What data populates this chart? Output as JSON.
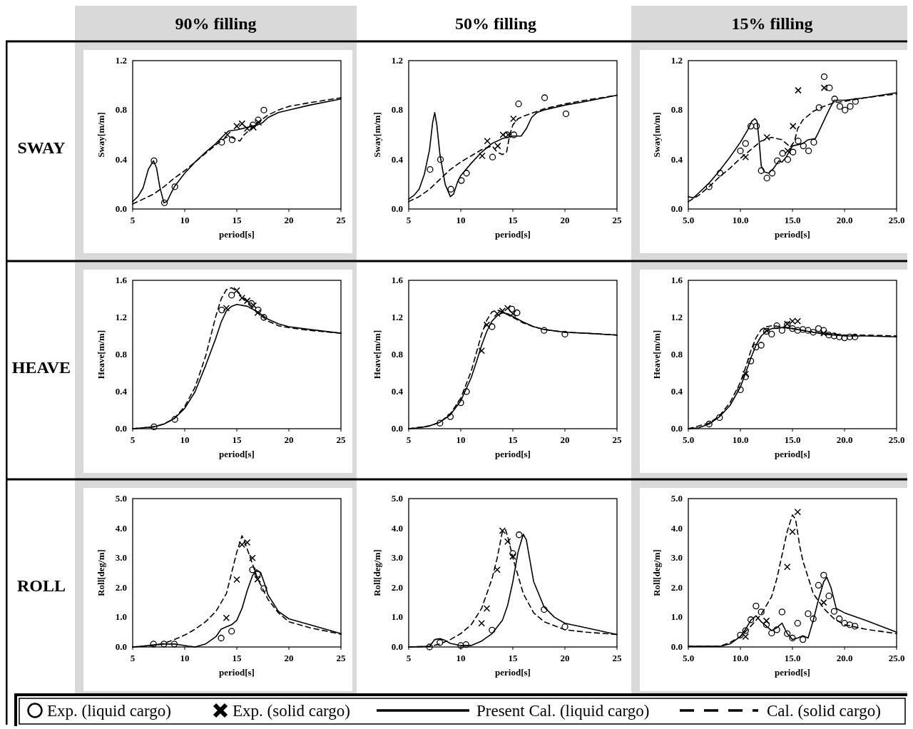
{
  "chart_data": [
    {
      "type": "line",
      "title": "90% filling",
      "annotations": [
        "SWAY"
      ],
      "xlabel": "period[s]",
      "ylabel": "Sway[m/m]",
      "xlim": [
        5,
        25
      ],
      "xticks": [
        5,
        10,
        15,
        20,
        25
      ],
      "ylim": [
        0,
        1.2
      ],
      "yticks": [
        {
          "value": 0,
          "label": "0.0"
        },
        0.4,
        0.8,
        1.2
      ],
      "series": [
        {
          "type": "scatter",
          "marker": "circle",
          "color": "#000000",
          "x": [
            7.05,
            8.05,
            9.05,
            13.55,
            14.55,
            16.55,
            17.05,
            17.6
          ],
          "values": [
            0.39,
            0.05,
            0.18,
            0.54,
            0.56,
            0.68,
            0.72,
            0.8
          ]
        },
        {
          "type": "scatter",
          "marker": "cross",
          "color": "#000000",
          "x": [
            14.1,
            15.0,
            15.5,
            16.0,
            16.6,
            17.1
          ],
          "values": [
            0.6,
            0.67,
            0.69,
            0.65,
            0.66,
            0.7
          ]
        },
        {
          "type": "line",
          "line_style": "solid",
          "color": "#000000",
          "x": [
            5,
            5.5,
            6,
            6.5,
            7,
            7.3,
            7.6,
            8,
            8.3,
            8.7,
            9,
            10,
            11,
            12,
            13,
            13.8,
            14.2,
            15,
            16,
            16.5,
            17,
            17.5,
            18,
            19,
            20,
            22,
            25
          ],
          "values": [
            0.06,
            0.1,
            0.17,
            0.32,
            0.39,
            0.33,
            0.18,
            0.05,
            0.06,
            0.13,
            0.18,
            0.29,
            0.38,
            0.46,
            0.53,
            0.6,
            0.63,
            0.64,
            0.66,
            0.67,
            0.68,
            0.7,
            0.74,
            0.78,
            0.8,
            0.84,
            0.89
          ]
        },
        {
          "type": "line",
          "line_style": "dashed",
          "color": "#000000",
          "x": [
            5,
            6,
            7,
            8,
            9,
            10,
            11,
            12,
            13,
            14,
            14.5,
            15,
            15.3,
            15.7,
            16.5,
            17,
            18,
            19,
            20,
            22,
            25
          ],
          "values": [
            0.04,
            0.08,
            0.12,
            0.18,
            0.25,
            0.31,
            0.38,
            0.45,
            0.52,
            0.58,
            0.58,
            0.56,
            0.55,
            0.6,
            0.66,
            0.7,
            0.76,
            0.8,
            0.83,
            0.86,
            0.9
          ]
        }
      ]
    },
    {
      "type": "line",
      "title": "50% filling",
      "xlabel": "period[s]",
      "ylabel": "Sway[m/m]",
      "xlim": [
        5,
        25
      ],
      "xticks": [
        5,
        10,
        15,
        20,
        25
      ],
      "ylim": [
        0,
        1.2
      ],
      "yticks": [
        {
          "value": 0,
          "label": "0.0"
        },
        0.4,
        0.8,
        1.2
      ],
      "series": [
        {
          "type": "scatter",
          "marker": "circle",
          "color": "#000000",
          "x": [
            7.05,
            8.05,
            9.05,
            10.05,
            10.55,
            13.05,
            14.45,
            15.1,
            15.55,
            18.05,
            20.1
          ],
          "values": [
            0.32,
            0.4,
            0.16,
            0.23,
            0.29,
            0.42,
            0.6,
            0.6,
            0.85,
            0.9,
            0.77
          ]
        },
        {
          "type": "scatter",
          "marker": "cross",
          "color": "#000000",
          "x": [
            12.05,
            12.55,
            13.55,
            14.05,
            14.55,
            15.05
          ],
          "values": [
            0.43,
            0.55,
            0.51,
            0.6,
            0.6,
            0.73
          ]
        },
        {
          "type": "line",
          "line_style": "solid",
          "color": "#000000",
          "x": [
            5,
            5.5,
            6,
            6.5,
            7,
            7.3,
            7.5,
            7.7,
            8,
            8.5,
            9,
            9.3,
            9.7,
            10,
            11,
            12,
            13,
            14,
            15,
            15.8,
            16.3,
            16.8,
            17.3,
            18,
            20,
            22,
            25
          ],
          "values": [
            0.08,
            0.11,
            0.16,
            0.28,
            0.48,
            0.7,
            0.78,
            0.68,
            0.44,
            0.2,
            0.1,
            0.12,
            0.22,
            0.27,
            0.37,
            0.46,
            0.53,
            0.57,
            0.59,
            0.59,
            0.65,
            0.74,
            0.78,
            0.8,
            0.84,
            0.87,
            0.92
          ]
        },
        {
          "type": "line",
          "line_style": "dashed",
          "color": "#000000",
          "x": [
            5,
            6,
            7,
            8,
            9,
            10,
            11,
            12,
            13,
            13.5,
            14,
            14.4,
            14.7,
            15,
            15.5,
            16,
            17,
            18,
            20,
            22,
            25
          ],
          "values": [
            0.06,
            0.1,
            0.16,
            0.24,
            0.32,
            0.38,
            0.43,
            0.48,
            0.51,
            0.46,
            0.44,
            0.46,
            0.6,
            0.68,
            0.73,
            0.75,
            0.78,
            0.81,
            0.85,
            0.88,
            0.92
          ]
        }
      ]
    },
    {
      "type": "line",
      "title": "15% filling",
      "xlabel": "period[s]",
      "ylabel": "Sway[m/m]",
      "xlim": [
        5,
        25
      ],
      "xticks": [
        {
          "value": 5,
          "label": "5.0"
        },
        {
          "value": 10,
          "label": "10.0"
        },
        {
          "value": 15,
          "label": "15.0"
        },
        {
          "value": 20,
          "label": "20.0"
        },
        {
          "value": 25,
          "label": "25.0"
        }
      ],
      "ylim": [
        0,
        1.2
      ],
      "yticks": [
        {
          "value": 0,
          "label": "0.0"
        },
        0.4,
        0.8,
        1.2
      ],
      "series": [
        {
          "type": "scatter",
          "marker": "circle",
          "color": "#000000",
          "x": [
            7.0,
            8.05,
            10.0,
            10.5,
            11.0,
            11.55,
            12.0,
            12.55,
            13.05,
            13.55,
            14.05,
            14.55,
            15.05,
            15.55,
            16.05,
            16.55,
            17.05,
            17.55,
            18.05,
            18.55,
            19.05,
            19.55,
            20.05,
            20.55,
            21.05
          ],
          "values": [
            0.18,
            0.29,
            0.47,
            0.53,
            0.67,
            0.67,
            0.31,
            0.25,
            0.29,
            0.39,
            0.45,
            0.4,
            0.46,
            0.55,
            0.51,
            0.47,
            0.54,
            0.82,
            1.07,
            0.98,
            0.89,
            0.83,
            0.8,
            0.83,
            0.87
          ]
        },
        {
          "type": "scatter",
          "marker": "cross",
          "color": "#000000",
          "x": [
            10.5,
            12.55,
            14.55,
            15.05,
            15.55,
            18.05
          ],
          "values": [
            0.42,
            0.58,
            0.47,
            0.67,
            0.96,
            0.98
          ]
        },
        {
          "type": "line",
          "line_style": "solid",
          "color": "#000000",
          "x": [
            5,
            5.5,
            6,
            7,
            8,
            9,
            10,
            10.7,
            11.1,
            11.4,
            11.6,
            11.8,
            12,
            12.3,
            12.7,
            13.2,
            13.7,
            14,
            14.4,
            15,
            15.5,
            16,
            16.5,
            17.2,
            17.5,
            18,
            18.5,
            19,
            19.5,
            20,
            22,
            25
          ],
          "values": [
            0.1,
            0.09,
            0.13,
            0.21,
            0.31,
            0.42,
            0.54,
            0.64,
            0.71,
            0.73,
            0.71,
            0.55,
            0.35,
            0.3,
            0.29,
            0.33,
            0.39,
            0.38,
            0.42,
            0.51,
            0.52,
            0.53,
            0.56,
            0.57,
            0.62,
            0.71,
            0.8,
            0.88,
            0.88,
            0.88,
            0.9,
            0.94
          ]
        },
        {
          "type": "line",
          "line_style": "dashed",
          "color": "#000000",
          "x": [
            5,
            6,
            7,
            8,
            9,
            10,
            11,
            12,
            13,
            14,
            14.8,
            15.2,
            15.5,
            16,
            17,
            18,
            19,
            20,
            22,
            25
          ],
          "values": [
            0.06,
            0.11,
            0.18,
            0.26,
            0.33,
            0.41,
            0.48,
            0.55,
            0.58,
            0.56,
            0.5,
            0.55,
            0.65,
            0.72,
            0.79,
            0.83,
            0.86,
            0.87,
            0.9,
            0.93
          ]
        }
      ]
    },
    {
      "type": "line",
      "annotations": [
        "HEAVE"
      ],
      "xlabel": "period[s]",
      "ylabel": "Heave[m/m]",
      "xlim": [
        5,
        25
      ],
      "xticks": [
        5,
        10,
        15,
        20,
        25
      ],
      "ylim": [
        0,
        1.6
      ],
      "yticks": [
        {
          "value": 0,
          "label": "0.0"
        },
        0.4,
        0.8,
        1.2,
        1.6
      ],
      "series": [
        {
          "type": "scatter",
          "marker": "circle",
          "color": "#000000",
          "x": [
            7.05,
            9.05,
            13.55,
            14.5,
            16.4,
            17.05,
            17.6
          ],
          "values": [
            0.02,
            0.1,
            1.28,
            1.44,
            1.35,
            1.28,
            1.2
          ]
        },
        {
          "type": "scatter",
          "marker": "cross",
          "color": "#000000",
          "x": [
            14.0,
            15.0,
            15.5,
            16.0,
            16.6,
            17.0
          ],
          "values": [
            1.3,
            1.49,
            1.41,
            1.38,
            1.33,
            1.25
          ]
        },
        {
          "type": "line",
          "line_style": "solid",
          "color": "#000000",
          "x": [
            5,
            6,
            7,
            8,
            9,
            10,
            11,
            12,
            13,
            13.5,
            14,
            14.5,
            15,
            16,
            17,
            18,
            19,
            20,
            22,
            25
          ],
          "values": [
            0,
            0.01,
            0.02,
            0.05,
            0.11,
            0.22,
            0.4,
            0.68,
            0.98,
            1.15,
            1.27,
            1.32,
            1.34,
            1.32,
            1.26,
            1.18,
            1.13,
            1.1,
            1.07,
            1.03
          ]
        },
        {
          "type": "line",
          "line_style": "dashed",
          "color": "#000000",
          "x": [
            5,
            7,
            8,
            9,
            10,
            11,
            12,
            12.5,
            13,
            13.5,
            14,
            14.5,
            15,
            16,
            17,
            18,
            19,
            20,
            22,
            25
          ],
          "values": [
            0,
            0.02,
            0.05,
            0.11,
            0.24,
            0.45,
            0.78,
            1.0,
            1.22,
            1.4,
            1.5,
            1.52,
            1.48,
            1.37,
            1.25,
            1.16,
            1.11,
            1.09,
            1.06,
            1.03
          ]
        }
      ]
    },
    {
      "type": "line",
      "xlabel": "period[s]",
      "ylabel": "Heave[m/m]",
      "xlim": [
        5,
        25
      ],
      "xticks": [
        5,
        10,
        15,
        20,
        25
      ],
      "ylim": [
        0,
        1.6
      ],
      "yticks": [
        {
          "value": 0,
          "label": "0.0"
        },
        0.4,
        0.8,
        1.2,
        1.6
      ],
      "series": [
        {
          "type": "scatter",
          "marker": "circle",
          "color": "#000000",
          "x": [
            8.0,
            9.0,
            10.0,
            10.55,
            13.0,
            14.9,
            15.4,
            18.0,
            20.0
          ],
          "values": [
            0.06,
            0.13,
            0.28,
            0.4,
            1.1,
            1.29,
            1.25,
            1.06,
            1.02
          ]
        },
        {
          "type": "scatter",
          "marker": "cross",
          "color": "#000000",
          "x": [
            12.0,
            12.5,
            13.5,
            14.0,
            14.5,
            15.0
          ],
          "values": [
            0.84,
            1.12,
            1.24,
            1.27,
            1.3,
            1.24
          ]
        },
        {
          "type": "line",
          "line_style": "solid",
          "color": "#000000",
          "x": [
            5,
            6,
            7,
            8,
            9,
            10,
            11,
            11.5,
            12,
            12.5,
            13,
            13.5,
            14,
            14.5,
            15,
            16,
            17,
            18,
            20,
            22,
            25
          ],
          "values": [
            0,
            0.01,
            0.03,
            0.07,
            0.15,
            0.3,
            0.55,
            0.72,
            0.9,
            1.05,
            1.16,
            1.22,
            1.25,
            1.24,
            1.21,
            1.15,
            1.1,
            1.07,
            1.04,
            1.03,
            1.01
          ]
        },
        {
          "type": "line",
          "line_style": "dashed",
          "color": "#000000",
          "x": [
            5,
            7,
            8,
            9,
            10,
            11,
            11.5,
            12,
            12.5,
            13,
            13.5,
            14,
            15,
            16,
            17,
            18,
            20,
            22,
            25
          ],
          "values": [
            0,
            0.03,
            0.07,
            0.16,
            0.33,
            0.62,
            0.82,
            1.02,
            1.17,
            1.26,
            1.28,
            1.26,
            1.2,
            1.14,
            1.1,
            1.07,
            1.04,
            1.03,
            1.01
          ]
        }
      ]
    },
    {
      "type": "line",
      "xlabel": "period[s]",
      "ylabel": "Heave[m/m]",
      "xlim": [
        5,
        25
      ],
      "xticks": [
        {
          "value": 5,
          "label": "5.0"
        },
        {
          "value": 10,
          "label": "10.0"
        },
        {
          "value": 15,
          "label": "15.0"
        },
        {
          "value": 20,
          "label": "20.0"
        },
        {
          "value": 25,
          "label": "25.0"
        }
      ],
      "ylim": [
        0,
        1.6
      ],
      "yticks": [
        {
          "value": 0,
          "label": "0.0"
        },
        0.4,
        0.8,
        1.2,
        1.6
      ],
      "series": [
        {
          "type": "scatter",
          "marker": "circle",
          "color": "#000000",
          "x": [
            7.0,
            8.0,
            10.0,
            10.5,
            11.0,
            11.5,
            12.0,
            12.5,
            13.0,
            13.5,
            14.0,
            14.5,
            15.0,
            15.5,
            16.0,
            16.5,
            17.0,
            17.5,
            18.0,
            18.5,
            19.0,
            19.5,
            20.0,
            20.5,
            21.0
          ],
          "values": [
            0.05,
            0.12,
            0.42,
            0.56,
            0.73,
            0.88,
            0.9,
            1.05,
            1.02,
            1.11,
            1.06,
            1.12,
            1.08,
            1.06,
            1.07,
            1.06,
            1.04,
            1.08,
            1.06,
            1.01,
            1.0,
            0.99,
            0.98,
            0.99,
            0.99
          ]
        },
        {
          "type": "scatter",
          "marker": "cross",
          "color": "#000000",
          "x": [
            10.5,
            12.5,
            14.5,
            15.0,
            15.5,
            18.0
          ],
          "values": [
            0.59,
            1.06,
            1.13,
            1.16,
            1.16,
            1.03
          ]
        },
        {
          "type": "line",
          "line_style": "solid",
          "color": "#000000",
          "x": [
            5,
            6,
            7,
            8,
            9,
            10,
            10.5,
            11,
            11.5,
            12,
            12.5,
            13,
            14,
            15,
            16,
            17,
            18,
            20,
            22,
            25
          ],
          "values": [
            0,
            0.01,
            0.05,
            0.13,
            0.25,
            0.45,
            0.6,
            0.76,
            0.9,
            1.0,
            1.05,
            1.08,
            1.09,
            1.08,
            1.06,
            1.04,
            1.02,
            1.0,
            1.0,
            0.99
          ]
        },
        {
          "type": "line",
          "line_style": "dashed",
          "color": "#000000",
          "x": [
            5,
            7,
            8,
            9,
            10,
            10.5,
            11,
            11.5,
            12,
            12.5,
            13,
            14,
            15,
            16,
            17,
            18,
            20,
            22,
            25
          ],
          "values": [
            0,
            0.06,
            0.14,
            0.28,
            0.5,
            0.66,
            0.84,
            0.98,
            1.07,
            1.1,
            1.11,
            1.1,
            1.08,
            1.06,
            1.04,
            1.03,
            1.01,
            1.01,
            1.0
          ]
        }
      ]
    },
    {
      "type": "line",
      "annotations": [
        "ROLL"
      ],
      "xlabel": "period[s]",
      "ylabel": "Roll[deg/m]",
      "xlim": [
        5,
        25
      ],
      "xticks": [
        5,
        10,
        15,
        20,
        25
      ],
      "ylim": [
        0,
        5
      ],
      "yticks": [
        {
          "value": 0,
          "label": "0.0"
        },
        {
          "value": 1,
          "label": "1.0"
        },
        {
          "value": 2,
          "label": "2.0"
        },
        {
          "value": 3,
          "label": "3.0"
        },
        {
          "value": 4,
          "label": "4.0"
        },
        {
          "value": 5,
          "label": "5.0"
        }
      ],
      "series": [
        {
          "type": "scatter",
          "marker": "circle",
          "color": "#000000",
          "x": [
            7.0,
            8.0,
            9.0,
            13.5,
            14.5,
            16.5,
            17.0,
            17.6
          ],
          "values": [
            0.1,
            0.1,
            0.1,
            0.3,
            0.53,
            2.6,
            2.45,
            1.97
          ]
        },
        {
          "type": "scatter",
          "marker": "cross",
          "color": "#000000",
          "x": [
            14.0,
            15.0,
            15.5,
            16.0,
            16.5,
            17.0
          ],
          "values": [
            0.98,
            2.27,
            3.45,
            3.52,
            3.0,
            2.28
          ]
        },
        {
          "type": "line",
          "line_style": "solid",
          "color": "#000000",
          "x": [
            5,
            6,
            7,
            8,
            9,
            10,
            10.5,
            11,
            12,
            13,
            13.5,
            14,
            14.5,
            15,
            15.5,
            16,
            16.5,
            16.9,
            17.3,
            17.7,
            18,
            19,
            20,
            22,
            25
          ],
          "values": [
            0,
            0.03,
            0.07,
            0.1,
            0.1,
            0.05,
            0.02,
            0,
            0.1,
            0.35,
            0.6,
            0.68,
            0.75,
            0.9,
            1.3,
            1.9,
            2.4,
            2.6,
            2.5,
            2.1,
            1.75,
            1.2,
            0.95,
            0.75,
            0.45
          ]
        },
        {
          "type": "line",
          "line_style": "dashed",
          "color": "#000000",
          "x": [
            5,
            7,
            8,
            9,
            10,
            11,
            12,
            13,
            14,
            14.5,
            15,
            15.5,
            15.8,
            16,
            17,
            18,
            19,
            20,
            22,
            25
          ],
          "values": [
            0,
            0.05,
            0.12,
            0.25,
            0.4,
            0.6,
            0.85,
            1.2,
            1.8,
            2.5,
            3.2,
            3.75,
            3.5,
            3.3,
            2.3,
            1.6,
            1.15,
            0.85,
            0.65,
            0.43
          ]
        }
      ]
    },
    {
      "type": "line",
      "xlabel": "period[s]",
      "ylabel": "Roll[deg/m]",
      "xlim": [
        5,
        25
      ],
      "xticks": [
        5,
        10,
        15,
        20,
        25
      ],
      "ylim": [
        0,
        5
      ],
      "yticks": [
        {
          "value": 0,
          "label": "0.0"
        },
        {
          "value": 1,
          "label": "1.0"
        },
        {
          "value": 2,
          "label": "2.0"
        },
        {
          "value": 3,
          "label": "3.0"
        },
        {
          "value": 4,
          "label": "4.0"
        },
        {
          "value": 5,
          "label": "5.0"
        }
      ],
      "series": [
        {
          "type": "scatter",
          "marker": "circle",
          "color": "#000000",
          "x": [
            7.0,
            8.0,
            10.0,
            10.5,
            13.0,
            15.0,
            15.6,
            18.0,
            20.0
          ],
          "values": [
            0,
            0.15,
            0.05,
            0.08,
            0.57,
            3.15,
            3.78,
            1.26,
            0.68
          ]
        },
        {
          "type": "scatter",
          "marker": "cross",
          "color": "#000000",
          "x": [
            12.0,
            12.5,
            13.5,
            14.0,
            14.5,
            15.0
          ],
          "values": [
            0.8,
            1.3,
            2.6,
            3.92,
            3.55,
            3.05
          ]
        },
        {
          "type": "line",
          "line_style": "solid",
          "color": "#000000",
          "x": [
            5,
            7,
            7.5,
            8,
            8.5,
            9,
            10,
            11,
            12,
            13,
            14,
            14.5,
            15,
            15.5,
            16,
            16.3,
            16.7,
            17,
            18,
            19,
            20,
            22,
            25
          ],
          "values": [
            0,
            0.02,
            0.25,
            0.28,
            0.22,
            0.12,
            0.05,
            0.05,
            0.2,
            0.45,
            0.9,
            1.4,
            2.2,
            3.2,
            3.8,
            3.6,
            2.8,
            2.2,
            1.35,
            1.0,
            0.8,
            0.65,
            0.42
          ]
        },
        {
          "type": "line",
          "line_style": "dashed",
          "color": "#000000",
          "x": [
            5,
            7,
            8,
            9,
            10,
            11,
            12,
            13,
            13.5,
            14,
            14.3,
            14.6,
            15,
            16,
            17,
            18,
            20,
            22,
            25
          ],
          "values": [
            0,
            0.02,
            0.1,
            0.25,
            0.45,
            0.75,
            1.3,
            2.3,
            3.0,
            3.9,
            3.95,
            3.6,
            3.0,
            1.8,
            1.15,
            0.85,
            0.58,
            0.5,
            0.42
          ]
        }
      ]
    },
    {
      "type": "line",
      "xlabel": "period[s]",
      "ylabel": "Roll[deg/m]",
      "xlim": [
        5,
        25
      ],
      "xticks": [
        {
          "value": 5,
          "label": "5.0"
        },
        {
          "value": 10,
          "label": "10.0"
        },
        {
          "value": 15,
          "label": "15.0"
        },
        {
          "value": 20,
          "label": "20.0"
        },
        {
          "value": 25,
          "label": "25.0"
        }
      ],
      "ylim": [
        0,
        5
      ],
      "yticks": [
        {
          "value": 0,
          "label": "0.0"
        },
        {
          "value": 1,
          "label": "1.0"
        },
        {
          "value": 2,
          "label": "2.0"
        },
        {
          "value": 3,
          "label": "3.0"
        },
        {
          "value": 4,
          "label": "4.0"
        },
        {
          "value": 5,
          "label": "5.0"
        }
      ],
      "legend": "bottom",
      "series": [
        {
          "type": "scatter",
          "marker": "circle",
          "color": "#000000",
          "name": "Exp. (liquid cargo)",
          "x": [
            10.0,
            10.5,
            11.0,
            11.5,
            12.0,
            12.5,
            13.0,
            13.5,
            14.0,
            14.5,
            15.0,
            15.5,
            16.0,
            16.5,
            17.0,
            17.5,
            18.0,
            18.5,
            19.0,
            19.5,
            20.0,
            20.5,
            21.0
          ],
          "values": [
            0.4,
            0.55,
            0.92,
            1.38,
            1.18,
            0.75,
            0.47,
            0.58,
            1.18,
            0.45,
            0.3,
            0.8,
            0.25,
            1.12,
            0.95,
            2.08,
            2.42,
            1.72,
            1.2,
            0.95,
            0.8,
            0.75,
            0.7
          ]
        },
        {
          "type": "scatter",
          "marker": "cross",
          "color": "#000000",
          "name": "Exp. (solid cargo)",
          "x": [
            10.5,
            12.5,
            14.5,
            15.0,
            15.5,
            18.0
          ],
          "values": [
            0.35,
            0.88,
            2.7,
            3.88,
            4.55,
            1.5
          ]
        },
        {
          "type": "line",
          "line_style": "solid",
          "color": "#000000",
          "name": "Present Cal. (liquid cargo)",
          "x": [
            5,
            8,
            9,
            10,
            10.5,
            11,
            11.5,
            12,
            12.5,
            13,
            13.5,
            14,
            14.5,
            15,
            15.5,
            16,
            16.5,
            17,
            17.5,
            18,
            18.3,
            18.7,
            19.2,
            20,
            22,
            25
          ],
          "values": [
            0.02,
            0.02,
            0.1,
            0.35,
            0.6,
            0.9,
            1.05,
            0.85,
            0.7,
            0.55,
            0.65,
            0.8,
            0.45,
            0.25,
            0.3,
            0.38,
            0.3,
            0.9,
            1.6,
            2.2,
            2.35,
            2.0,
            1.3,
            1.15,
            0.9,
            0.5
          ]
        },
        {
          "type": "line",
          "line_style": "dashed",
          "color": "#000000",
          "name": "Cal. (solid cargo)",
          "x": [
            5,
            8,
            9,
            10,
            11,
            12,
            13,
            13.5,
            14,
            14.5,
            15,
            15.3,
            15.7,
            16,
            17,
            18,
            19,
            20,
            22,
            25
          ],
          "values": [
            0.02,
            0.02,
            0.15,
            0.35,
            0.7,
            1.1,
            1.7,
            2.3,
            3.1,
            3.9,
            4.45,
            4.3,
            3.4,
            2.9,
            1.8,
            1.3,
            0.95,
            0.75,
            0.6,
            0.45
          ]
        }
      ]
    }
  ]
}
